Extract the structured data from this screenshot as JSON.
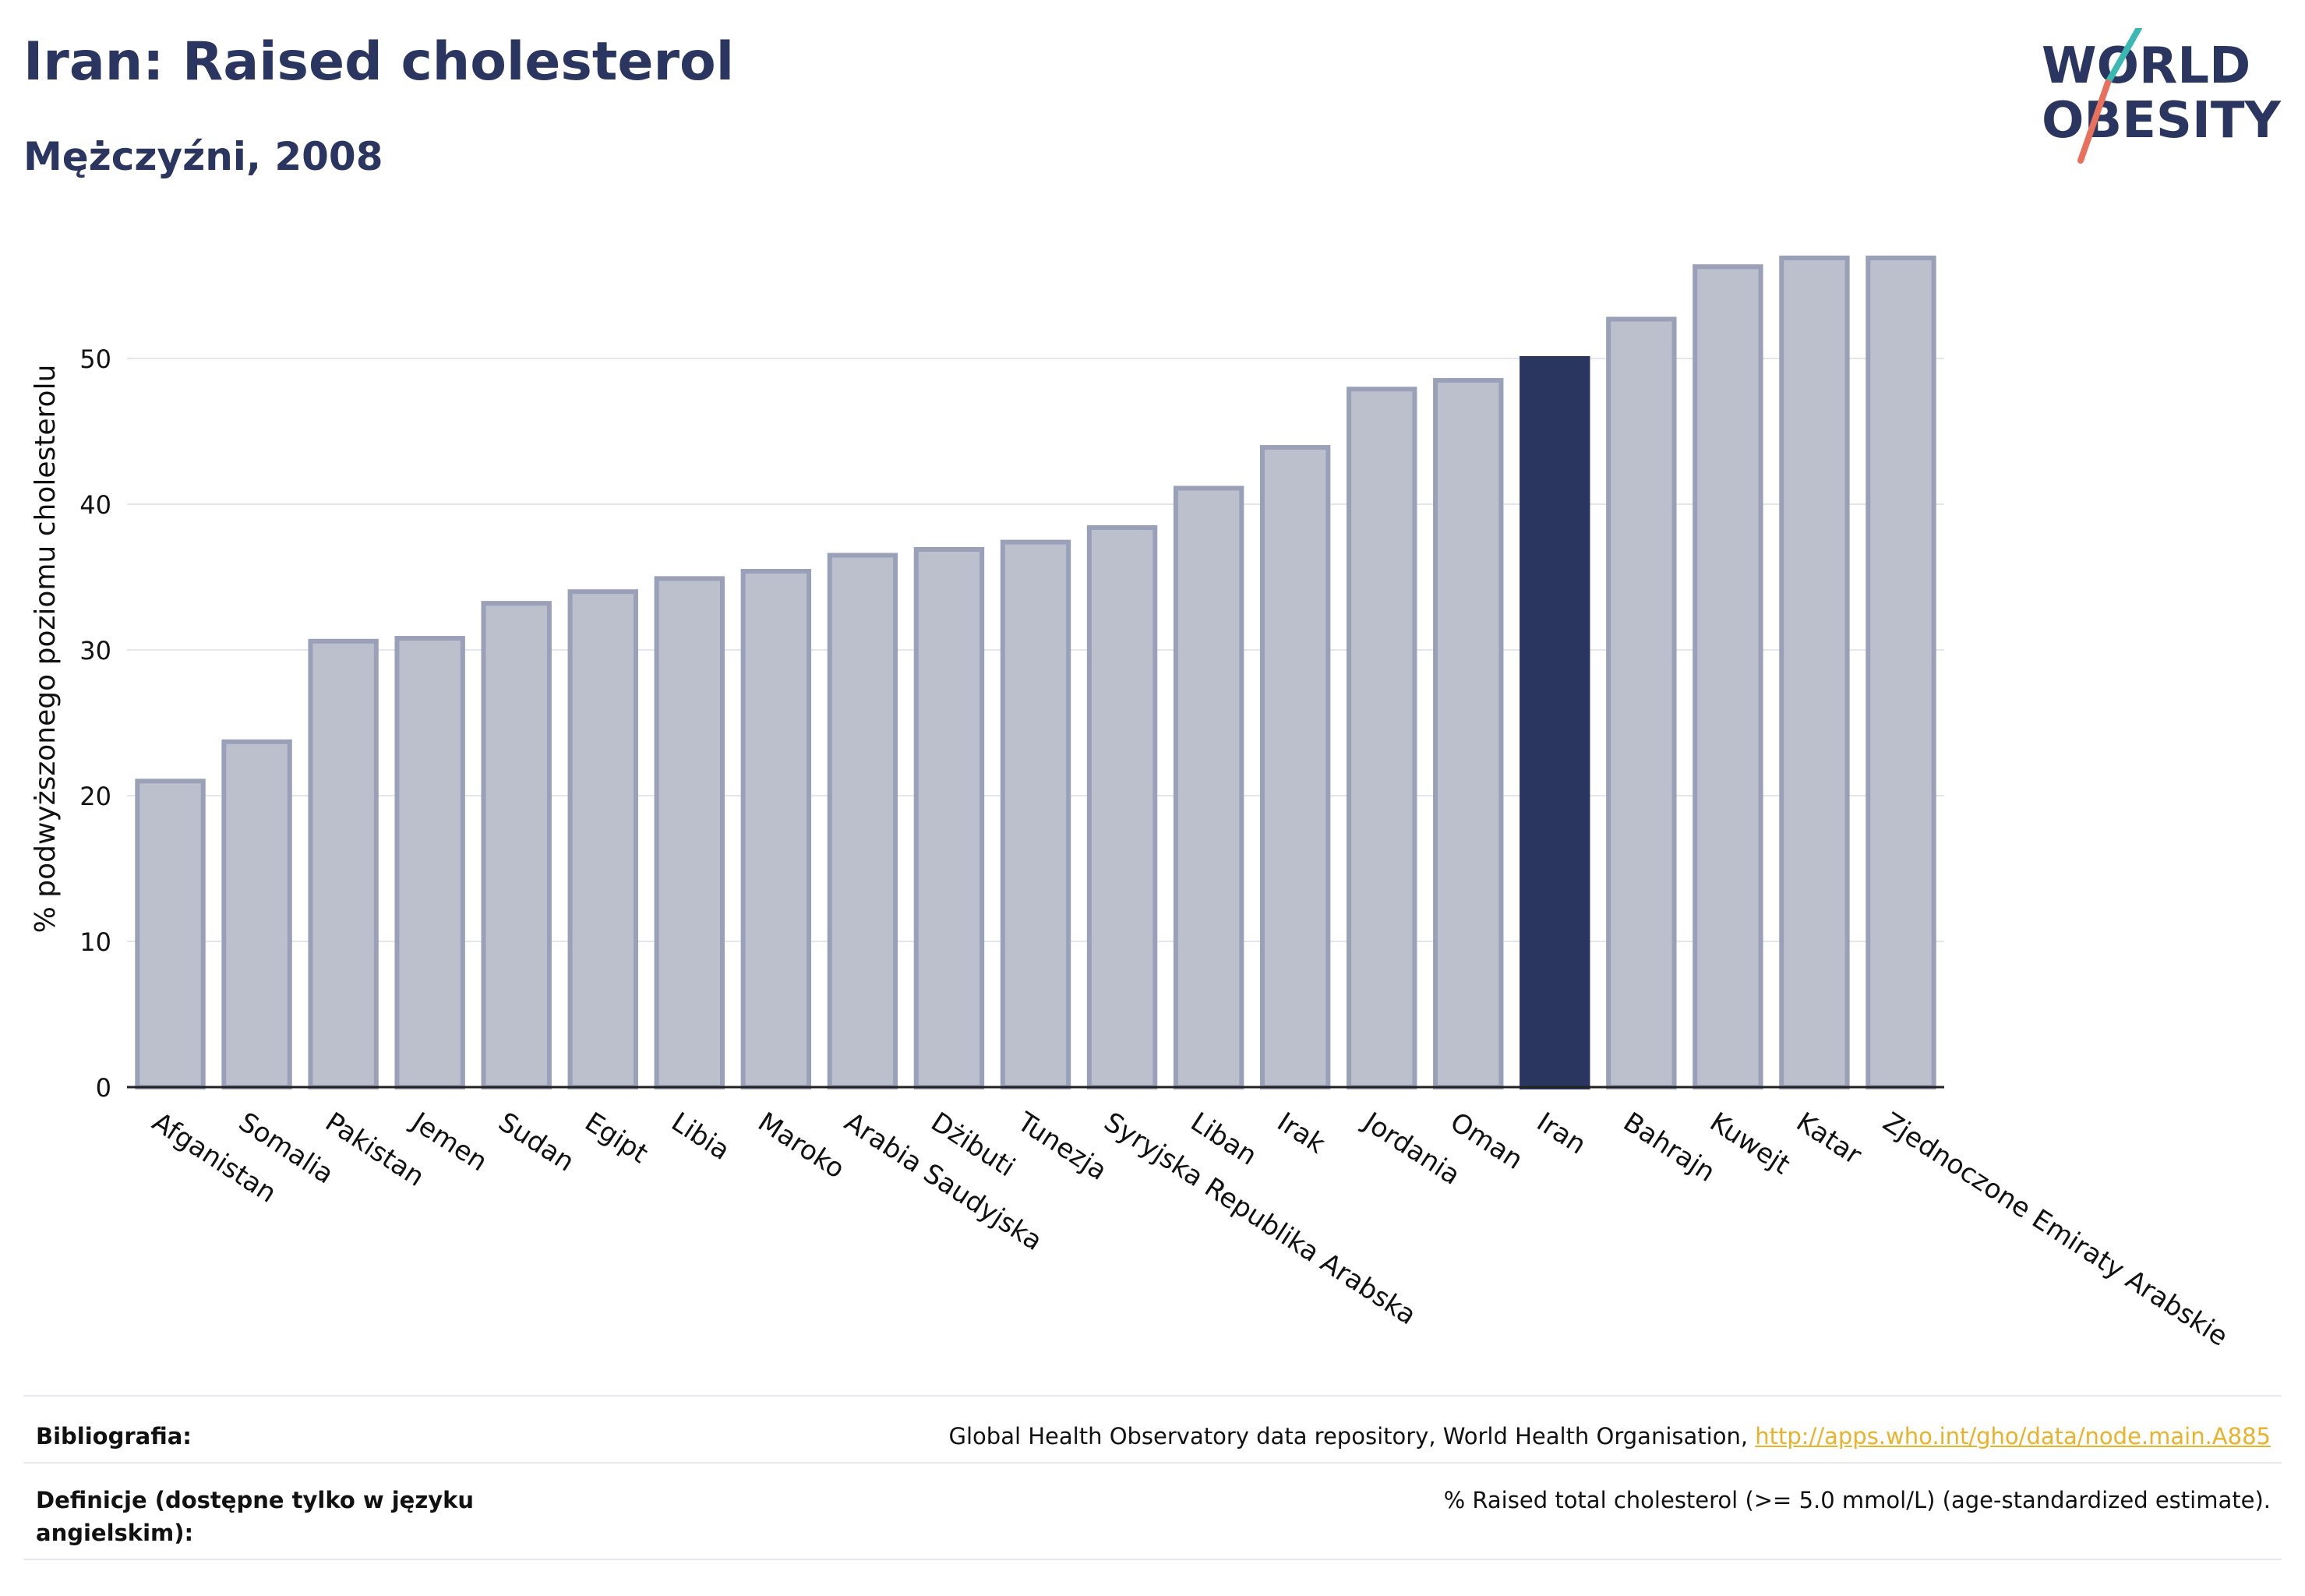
{
  "title": "Iran: Raised cholesterol",
  "subtitle": "Mężczyźni, 2008",
  "logo": {
    "line1": "WORLD",
    "line2": "OBESITY",
    "o_char": "O"
  },
  "colors": {
    "bar_default": "#bcc0cd",
    "bar_outline": "#9aa0b8",
    "bar_highlight": "#2a3560",
    "grid": "#e4e6ee",
    "logo_text": "#2a3560",
    "logo_teal": "#3bb8b1",
    "logo_coral": "#e8705c"
  },
  "chart_data": {
    "type": "bar",
    "categories": [
      "Afganistan",
      "Somalia",
      "Pakistan",
      "Jemen",
      "Sudan",
      "Egipt",
      "Libia",
      "Maroko",
      "Arabia Saudyjska",
      "Dżibuti",
      "Tunezja",
      "Syryjska Republika Arabska",
      "Liban",
      "Irak",
      "Jordania",
      "Oman",
      "Iran",
      "Bahrajn",
      "Kuwejt",
      "Katar",
      "Zjednoczone Emiraty Arabskie"
    ],
    "values": [
      21.0,
      23.7,
      30.6,
      30.8,
      33.2,
      34.0,
      34.9,
      35.4,
      36.5,
      36.9,
      37.4,
      38.4,
      41.1,
      43.9,
      47.9,
      48.5,
      50.0,
      52.7,
      56.3,
      56.9,
      56.9
    ],
    "highlight": "Iran",
    "ylabel": "% podwyższonego poziomu cholesterolu",
    "yticks": [
      0,
      10,
      20,
      30,
      40,
      50
    ],
    "ylim": [
      0,
      60
    ],
    "grid": true
  },
  "footer": {
    "bibliography_label": "Bibliografia:",
    "bibliography_text": "Global Health Observatory data repository, World Health Organisation, ",
    "bibliography_link": "http://apps.who.int/gho/data/node.main.A885",
    "definitions_label_1": "Definicje (dostępne tylko w języku",
    "definitions_label_2": "angielskim):",
    "definitions_text": "% Raised total cholesterol (>= 5.0 mmol/L) (age-standardized estimate)."
  }
}
